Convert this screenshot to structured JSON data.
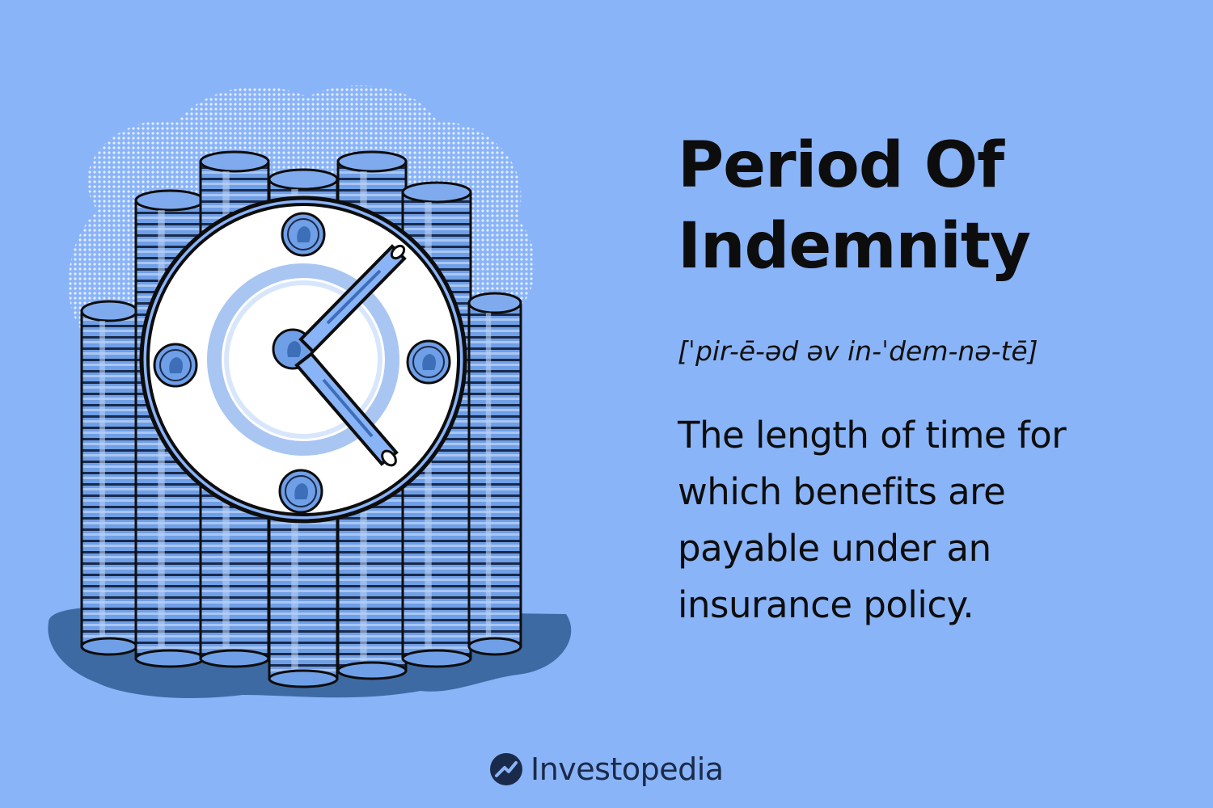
{
  "headline": {
    "line1": "Period Of",
    "line2": "Indemnity"
  },
  "pronunciation": "[ˈpir-ē-əd əv in-ˈdem-nə-tē]",
  "definition": "The length of time for which benefits are payable under an insurance policy.",
  "brand": {
    "name": "Investopedia",
    "icon": "investopedia-logo-icon"
  },
  "illustration": {
    "subject": "coin-stacks-clock",
    "icons": [
      "coin-stack",
      "clock-face",
      "coin",
      "rolled-bill-hand"
    ]
  },
  "colors": {
    "background": "#8ab4f8",
    "coin_fill": "#6f9fe6",
    "coin_dark": "#3d6fb8",
    "shadow": "#3e6aa4",
    "ink": "#0d0d0d"
  }
}
